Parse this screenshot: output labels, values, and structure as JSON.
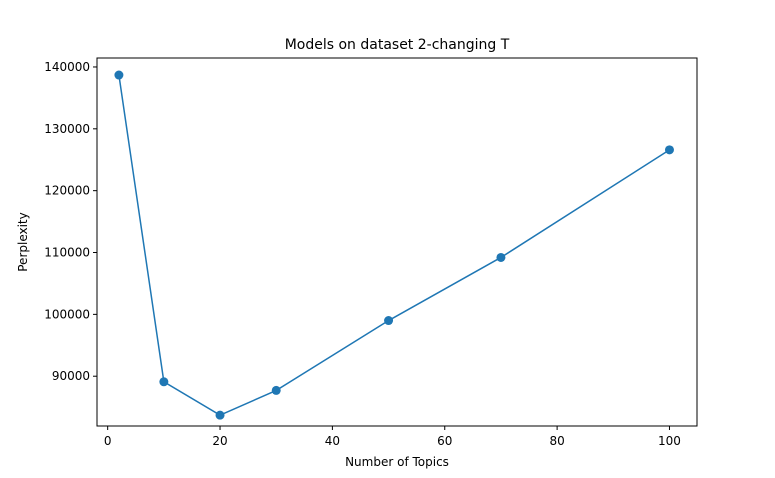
{
  "chart_data": {
    "type": "line",
    "title": "Models on dataset 2-changing T",
    "xlabel": "Number of Topics",
    "ylabel": "Perplexity",
    "x": [
      2,
      10,
      20,
      30,
      50,
      70,
      100
    ],
    "series": [
      {
        "values": [
          138700,
          89100,
          83700,
          87700,
          99000,
          109200,
          126600
        ]
      }
    ],
    "xlim": [
      -1.9,
      104.9
    ],
    "ylim": [
      81950,
      141450
    ],
    "xticks": [
      0,
      20,
      40,
      60,
      80,
      100
    ],
    "yticks": [
      90000,
      100000,
      110000,
      120000,
      130000,
      140000
    ],
    "xtick_labels": [
      "0",
      "20",
      "40",
      "60",
      "80",
      "100"
    ],
    "ytick_labels": [
      "90000",
      "100000",
      "110000",
      "120000",
      "130000",
      "140000"
    ],
    "grid": false,
    "markers": true,
    "color": "#1f77b4"
  }
}
